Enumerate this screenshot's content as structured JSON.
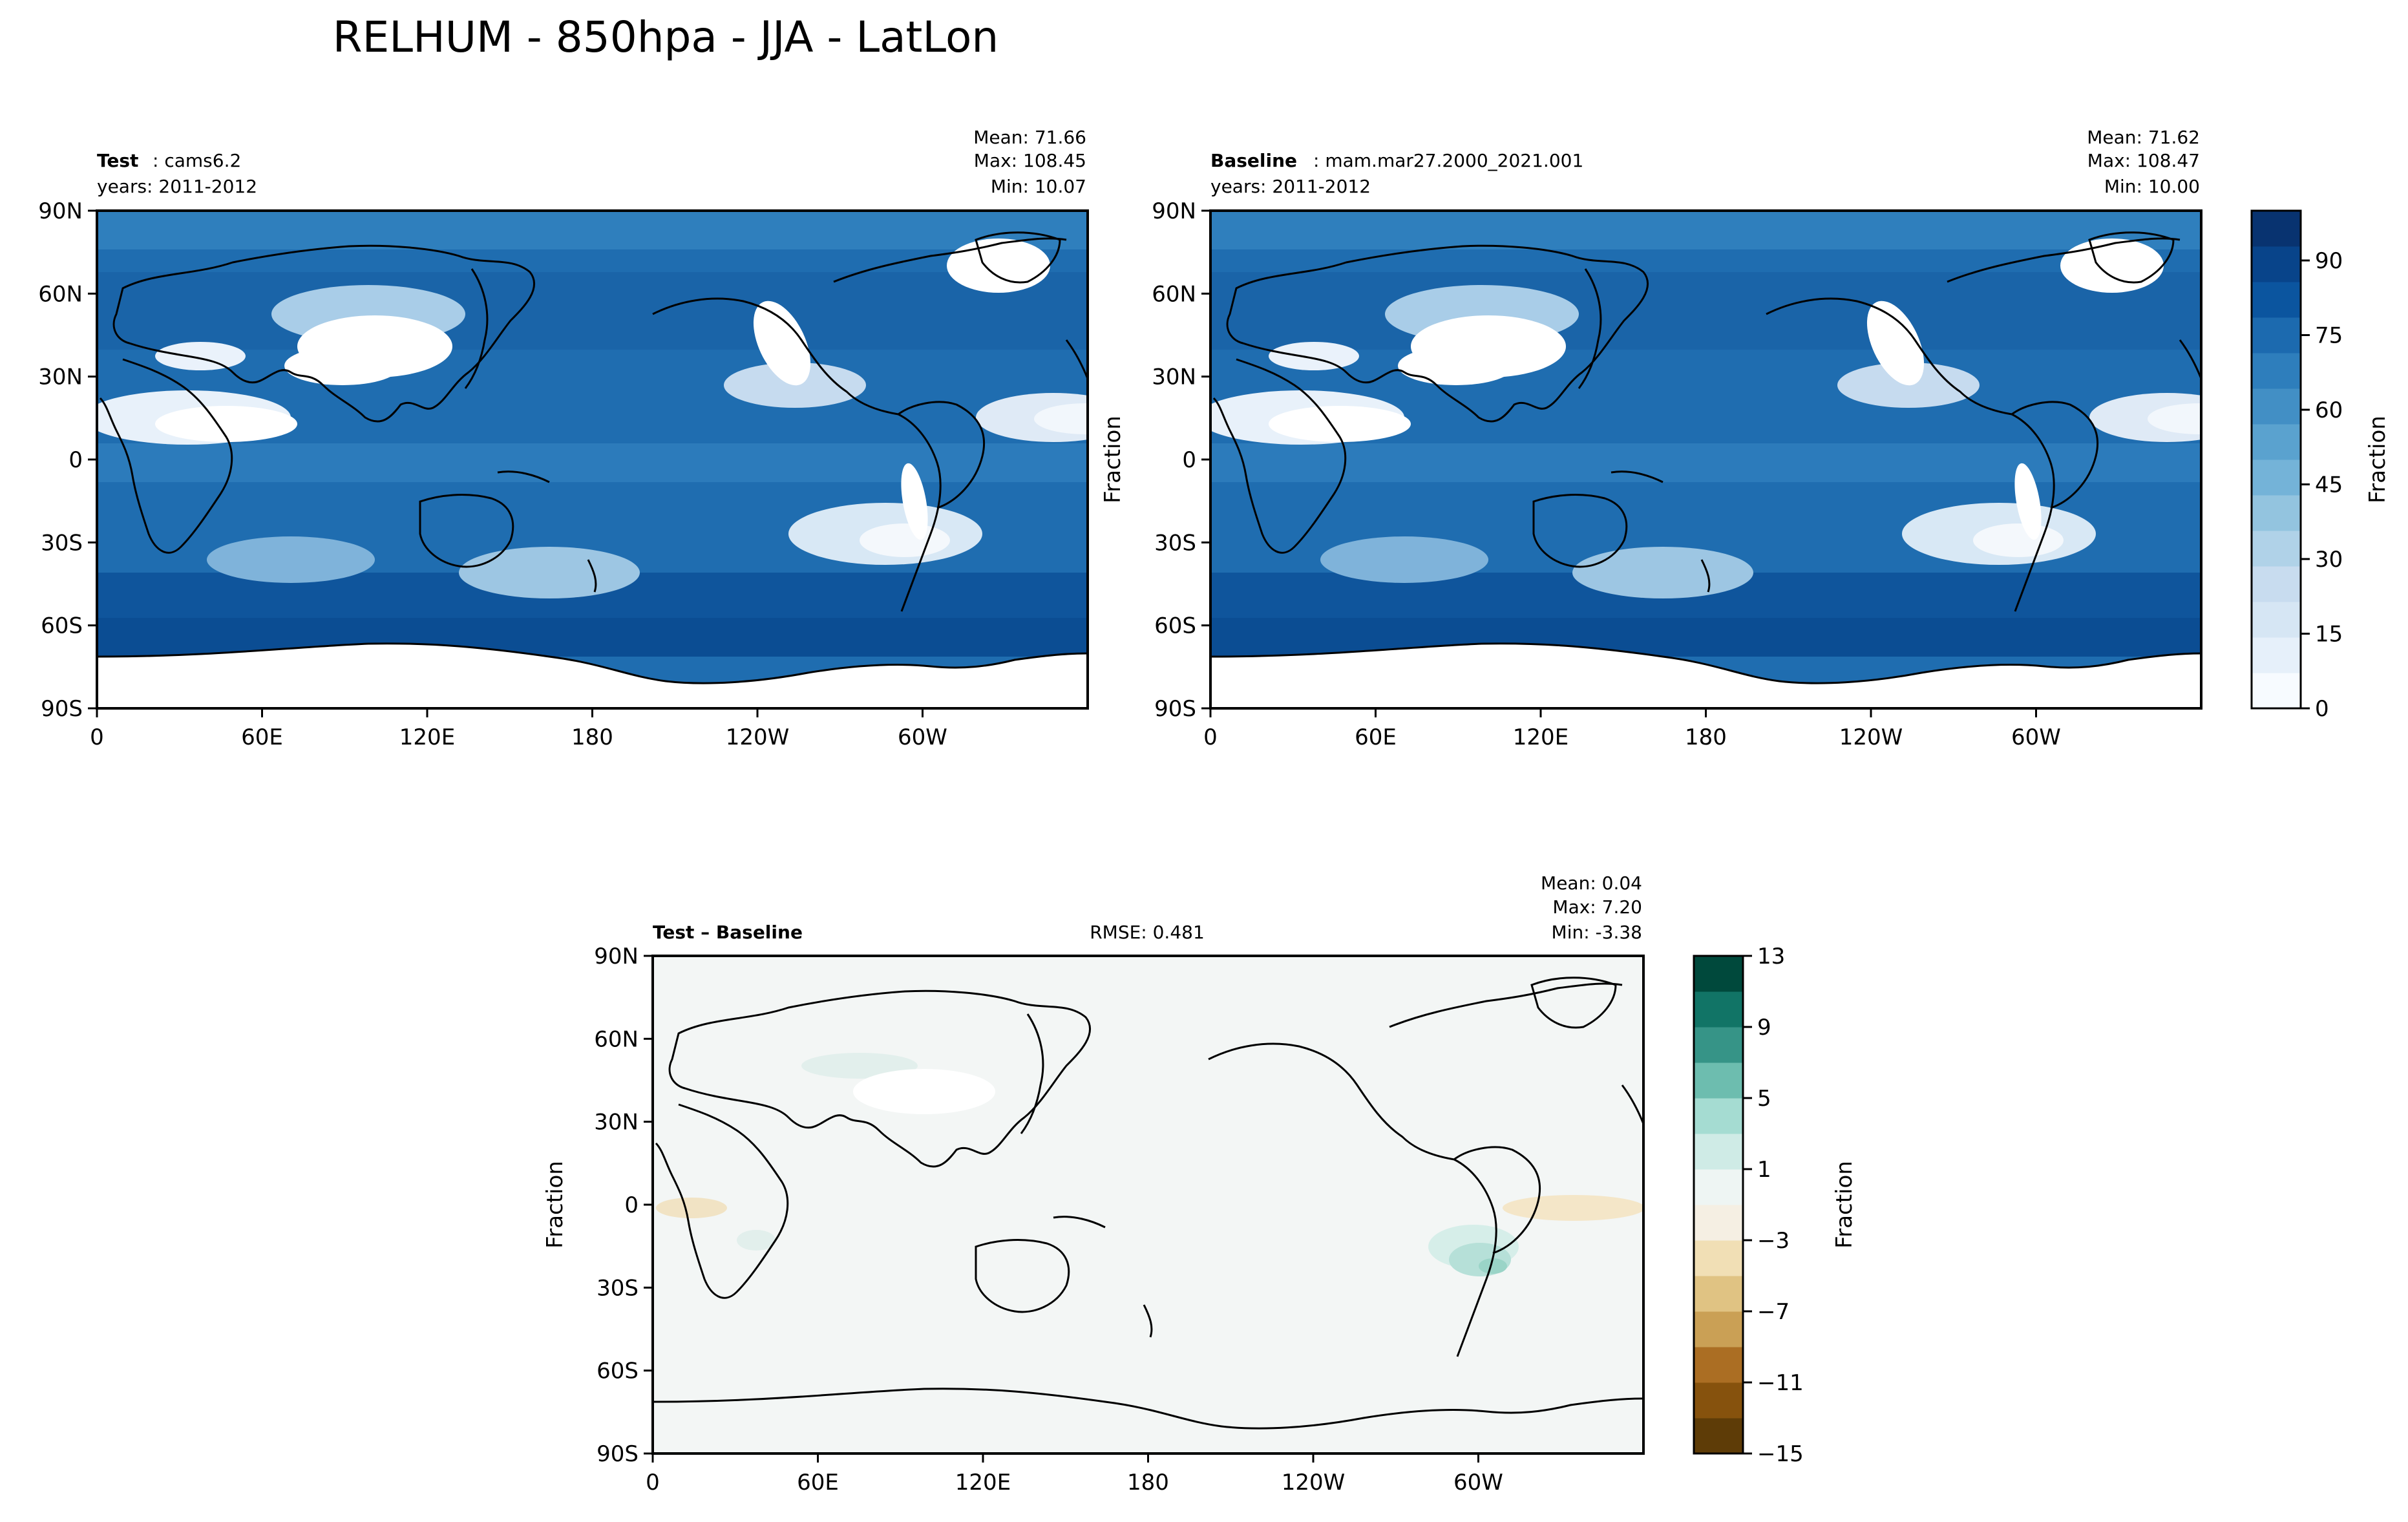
{
  "figure": {
    "title": "RELHUM - 850hpa - JJA - LatLon"
  },
  "ticks": {
    "x": [
      "0",
      "60E",
      "120E",
      "180",
      "120W",
      "60W"
    ],
    "y": [
      "90N",
      "60N",
      "30N",
      "0",
      "30S",
      "60S",
      "90S"
    ]
  },
  "panels": [
    {
      "id": "test",
      "label_bold": "Test",
      "label_rest": ": cams6.2",
      "years": "years: 2011-2012",
      "stats": [
        "Mean: 71.66",
        "Max: 108.45",
        "Min: 10.07"
      ],
      "ylabel": ""
    },
    {
      "id": "baseline",
      "label_bold": "Baseline",
      "label_rest": ": mam.mar27.2000_2021.001",
      "years": "years: 2011-2012",
      "stats": [
        "Mean: 71.62",
        "Max: 108.47",
        "Min: 10.00"
      ],
      "ylabel": "Fraction"
    },
    {
      "id": "diff",
      "label_bold": "Test – Baseline",
      "label_rest": "",
      "years": "",
      "rmse": "RMSE: 0.481",
      "stats": [
        "Mean:  0.04",
        "Max:  7.20",
        "Min: -3.38"
      ],
      "ylabel": "Fraction"
    }
  ],
  "colorbars": {
    "top": {
      "label": "Fraction",
      "range": [
        0,
        100
      ],
      "ticks": [
        "0",
        "15",
        "30",
        "45",
        "60",
        "75",
        "90"
      ],
      "tick_values": [
        0,
        15,
        30,
        45,
        60,
        75,
        90
      ],
      "colors": [
        "#f7fbff",
        "#e6f0fa",
        "#d6e6f4",
        "#c8dcef",
        "#b0d2e8",
        "#93c4df",
        "#74b3d8",
        "#5aa2cf",
        "#428fc5",
        "#2e7ebc",
        "#1c6aaf",
        "#0b559f",
        "#08448a",
        "#083370"
      ]
    },
    "bottom": {
      "label": "Fraction",
      "range": [
        -15,
        13
      ],
      "ticks": [
        "13",
        "9",
        "5",
        "1",
        "−3",
        "−7",
        "−11",
        "−15"
      ],
      "tick_values": [
        13,
        9,
        5,
        1,
        -3,
        -7,
        -11,
        -15
      ],
      "colors": [
        "#5e3c07",
        "#86520d",
        "#ab6e23",
        "#caa055",
        "#e0c383",
        "#f1dfb5",
        "#f5efe3",
        "#eef5f3",
        "#cfebe6",
        "#a5dcd2",
        "#6dbdaf",
        "#369487",
        "#117466",
        "#00493c"
      ]
    }
  },
  "chart_data": [
    {
      "type": "heatmap",
      "title": "Test: cams6.2",
      "variable": "RELHUM 850hpa JJA",
      "stats": {
        "mean": 71.66,
        "max": 108.45,
        "min": 10.07
      },
      "xlim": [
        0,
        360
      ],
      "ylim": [
        -90,
        90
      ],
      "colorscale": "Blues",
      "vmin": 0,
      "vmax": 100
    },
    {
      "type": "heatmap",
      "title": "Baseline: mam.mar27.2000_2021.001",
      "variable": "RELHUM 850hpa JJA",
      "stats": {
        "mean": 71.62,
        "max": 108.47,
        "min": 10.0
      },
      "xlim": [
        0,
        360
      ],
      "ylim": [
        -90,
        90
      ],
      "colorscale": "Blues",
      "vmin": 0,
      "vmax": 100
    },
    {
      "type": "heatmap",
      "title": "Test - Baseline",
      "rmse": 0.481,
      "stats": {
        "mean": 0.04,
        "max": 7.2,
        "min": -3.38
      },
      "xlim": [
        0,
        360
      ],
      "ylim": [
        -90,
        90
      ],
      "colorscale": "BrBG",
      "vmin": -15,
      "vmax": 13
    }
  ]
}
